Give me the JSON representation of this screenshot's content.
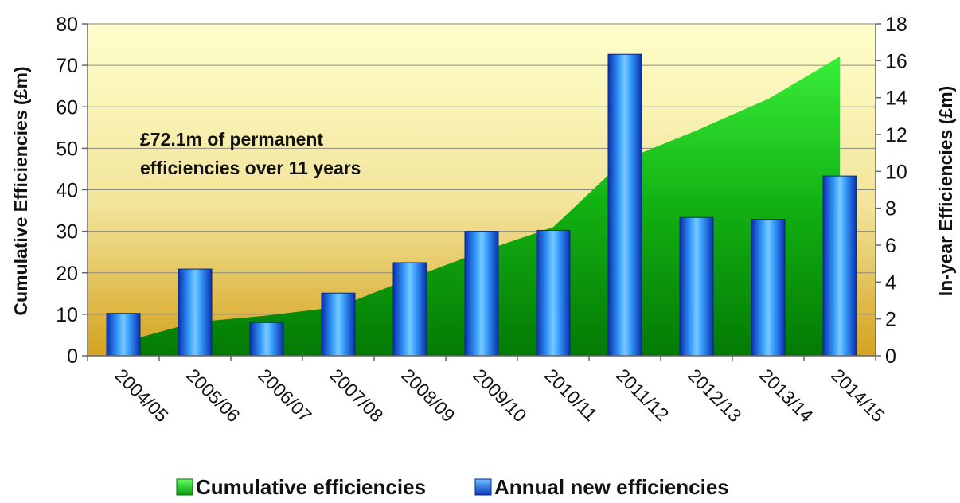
{
  "chart_data": {
    "type": "bar",
    "categories": [
      "2004/05",
      "2005/06",
      "2006/07",
      "2007/08",
      "2008/09",
      "2009/10",
      "2010/11",
      "2011/12",
      "2012/13",
      "2013/14",
      "2014/15"
    ],
    "series": [
      {
        "name": "Cumulative efficiencies",
        "type": "area",
        "axis": "left",
        "values": [
          3.3,
          8.1,
          9.7,
          11.8,
          18.6,
          25.1,
          31.0,
          47.3,
          54.3,
          61.9,
          72.1
        ],
        "color": "#22bb22"
      },
      {
        "name": "Annual new efficiencies",
        "type": "bar",
        "axis": "right",
        "values": [
          2.3,
          4.7,
          1.8,
          3.4,
          5.05,
          6.75,
          6.8,
          16.35,
          7.5,
          7.4,
          9.75
        ],
        "color": "#1a6fe0"
      }
    ],
    "ylabel": "Cumulative Efficiencies (£m)",
    "y2label": "In-year Efficiencies (£m)",
    "ylim": [
      0,
      80
    ],
    "y2lim": [
      0,
      18
    ],
    "yticks": [
      "0",
      "10",
      "20",
      "30",
      "40",
      "50",
      "60",
      "70",
      "80"
    ],
    "y2ticks": [
      "0",
      "2",
      "4",
      "6",
      "8",
      "10",
      "12",
      "14",
      "16",
      "18"
    ],
    "grid": true,
    "legend_position": "bottom",
    "annotation": [
      "£72.1m of permanent",
      "efficiencies over 11 years"
    ]
  }
}
